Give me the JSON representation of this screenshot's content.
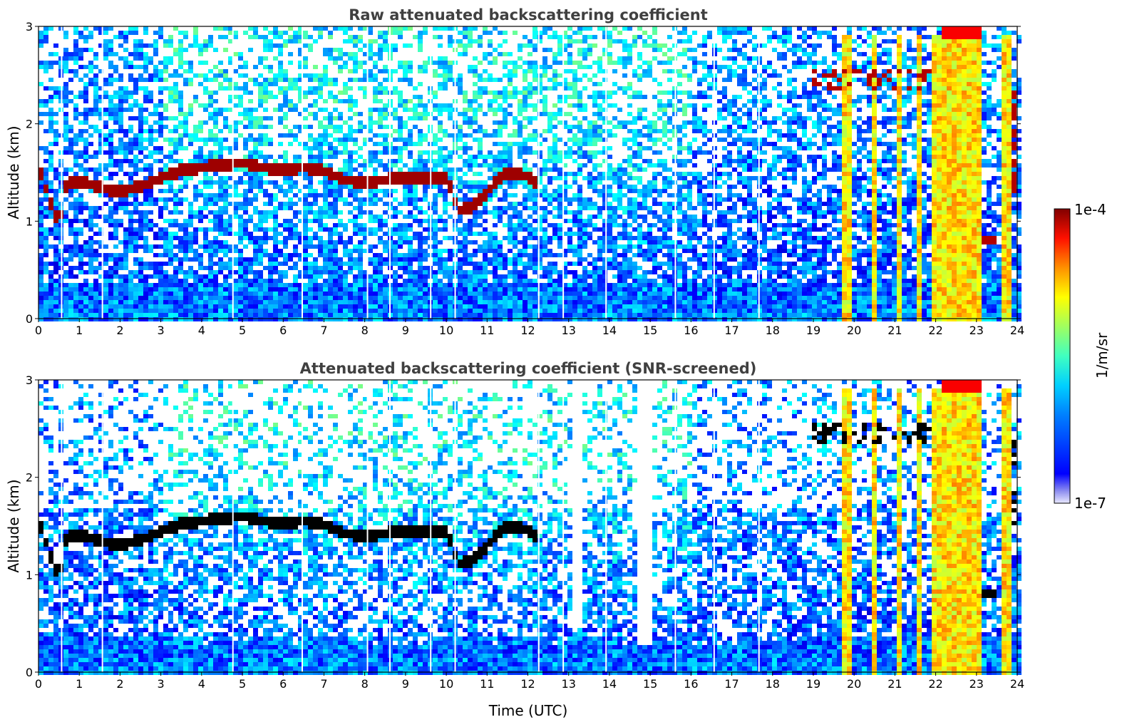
{
  "chart_data": [
    {
      "type": "heatmap",
      "title": "Raw attenuated backscattering coefficient",
      "xlabel": "",
      "ylabel": "Altitude (km)",
      "xlim": [
        0,
        24
      ],
      "ylim": [
        0,
        3
      ],
      "xticks": [
        "0",
        "1",
        "2",
        "3",
        "4",
        "5",
        "6",
        "7",
        "8",
        "9",
        "10",
        "11",
        "12",
        "13",
        "14",
        "15",
        "16",
        "17",
        "18",
        "19",
        "20",
        "21",
        "22",
        "23",
        "24"
      ],
      "yticks": [
        "0",
        "1",
        "2",
        "3"
      ],
      "colorscale": "jet",
      "color_log_range": [
        -7,
        -4
      ],
      "cloud_base_km": {
        "time_utc": [
          0,
          0.5,
          0.7,
          1,
          1.5,
          2,
          2.5,
          3,
          3.5,
          4,
          4.5,
          5,
          5.5,
          6,
          6.5,
          7,
          7.5,
          8,
          8.5,
          9,
          9.5,
          10,
          10.3,
          10.6,
          11,
          11.3,
          11.6,
          12,
          12.2
        ],
        "altitude_km": [
          1.55,
          0.95,
          1.4,
          1.4,
          1.35,
          1.3,
          1.35,
          1.45,
          1.52,
          1.55,
          1.58,
          1.6,
          1.55,
          1.52,
          1.55,
          1.52,
          1.42,
          1.4,
          1.42,
          1.45,
          1.45,
          1.45,
          1.1,
          1.15,
          1.3,
          1.45,
          1.5,
          1.45,
          1.4
        ]
      }
    },
    {
      "type": "heatmap",
      "title": "Attenuated backscattering coefficient (SNR-screened)",
      "xlabel": "Time (UTC)",
      "ylabel": "Altitude (km)",
      "xlim": [
        0,
        24
      ],
      "ylim": [
        0,
        3
      ],
      "xticks": [
        "0",
        "1",
        "2",
        "3",
        "4",
        "5",
        "6",
        "7",
        "8",
        "9",
        "10",
        "11",
        "12",
        "13",
        "14",
        "15",
        "16",
        "17",
        "18",
        "19",
        "20",
        "21",
        "22",
        "23",
        "24"
      ],
      "yticks": [
        "0",
        "1",
        "2",
        "3"
      ],
      "colorscale": "jet",
      "color_log_range": [
        -7,
        -4
      ]
    }
  ],
  "colorbar": {
    "label": "1/m/sr",
    "max_label": "1e-4",
    "min_label": "1e-7"
  }
}
